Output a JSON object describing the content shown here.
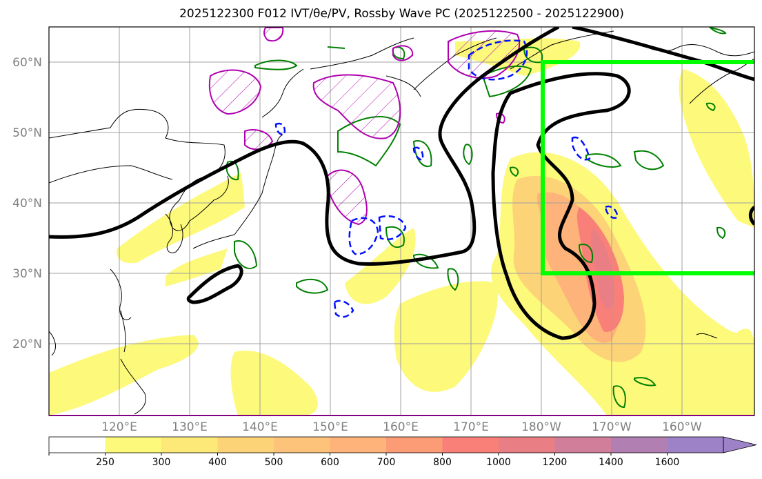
{
  "title": "2025122300 F012 IVT/θe/PV, Rossby Wave PC (2025122500 - 2025122900)",
  "lat_labels": [
    "60°N",
    "50°N",
    "40°N",
    "30°N",
    "20°N"
  ],
  "lon_labels": [
    "120°E",
    "130°E",
    "140°E",
    "150°E",
    "160°E",
    "170°E",
    "180°W",
    "170°W",
    "160°W"
  ],
  "colorbar": {
    "ticks": [
      "250",
      "300",
      "400",
      "500",
      "600",
      "700",
      "800",
      "1000",
      "1200",
      "1400",
      "1600"
    ],
    "colors": [
      "#ffffff",
      "#fdf97a",
      "#fde977",
      "#fdd377",
      "#fdc37a",
      "#fdb37a",
      "#fb9c77",
      "#f98078",
      "#ea7e85",
      "#d07e9a",
      "#b27fb3",
      "#9e82c8"
    ]
  },
  "highlight_box_color": "#00ff00"
}
